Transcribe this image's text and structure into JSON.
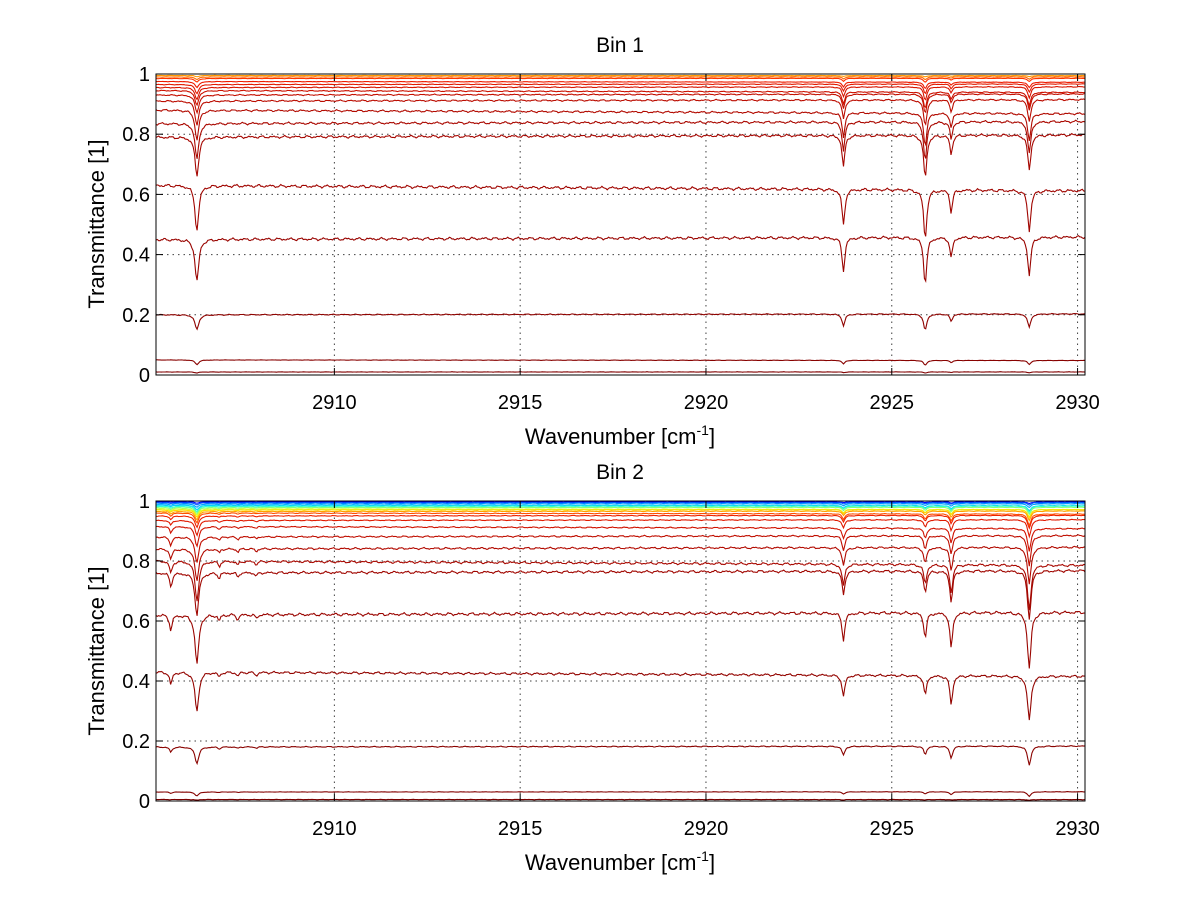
{
  "chart_data": [
    {
      "type": "line",
      "title": "Bin 1",
      "xlabel": "Wavenumber [cm",
      "xlabel_sup": "-1",
      "xlabel_end": "]",
      "ylabel": "Transmittance [1]",
      "xlim": [
        2905.2,
        2930.2
      ],
      "ylim": [
        0,
        1
      ],
      "xticks": [
        "2910",
        "2915",
        "2920",
        "2925",
        "2930"
      ],
      "yticks": [
        "0",
        "0.2",
        "0.4",
        "0.6",
        "0.8",
        "1"
      ],
      "grid": true,
      "lines": [
        {
          "x": 2906.3,
          "depth": 1.0,
          "width": 0.12
        },
        {
          "x": 2923.7,
          "depth": 0.8,
          "width": 0.09
        },
        {
          "x": 2925.9,
          "depth": 1.1,
          "width": 0.1
        },
        {
          "x": 2926.6,
          "depth": 0.5,
          "width": 0.08
        },
        {
          "x": 2928.7,
          "depth": 0.9,
          "width": 0.1
        }
      ],
      "series": [
        {
          "baseline": 0.995,
          "scale": 0.004,
          "color": "#ff9900"
        },
        {
          "baseline": 0.99,
          "scale": 0.008,
          "color": "#ff6a00"
        },
        {
          "baseline": 0.985,
          "scale": 0.012,
          "color": "#ff3300"
        },
        {
          "baseline": 0.975,
          "scale": 0.02,
          "color": "#ee1c00"
        },
        {
          "baseline": 0.965,
          "scale": 0.03,
          "color": "#e31a00"
        },
        {
          "baseline": 0.955,
          "scale": 0.04,
          "color": "#d81500"
        },
        {
          "baseline": 0.945,
          "scale": 0.05,
          "color": "#cc1100"
        },
        {
          "baseline": 0.93,
          "scale": 0.06,
          "color": "#c40f00"
        },
        {
          "baseline": 0.91,
          "scale": 0.08,
          "color": "#bb0c00"
        },
        {
          "baseline": 0.88,
          "scale": 0.1,
          "color": "#b20a00"
        },
        {
          "baseline": 0.835,
          "scale": 0.12,
          "color": "#aa0800"
        },
        {
          "baseline": 0.79,
          "scale": 0.13,
          "color": "#a50600"
        },
        {
          "baseline": 0.63,
          "scale": 0.15,
          "color": "#a00500"
        },
        {
          "baseline": 0.45,
          "scale": 0.14,
          "color": "#990400"
        },
        {
          "baseline": 0.2,
          "scale": 0.05,
          "color": "#8f0300"
        },
        {
          "baseline": 0.05,
          "scale": 0.015,
          "color": "#880200"
        },
        {
          "baseline": 0.01,
          "scale": 0.003,
          "color": "#800000"
        }
      ]
    },
    {
      "type": "line",
      "title": "Bin 2",
      "xlabel": "Wavenumber [cm",
      "xlabel_sup": "-1",
      "xlabel_end": "]",
      "ylabel": "Transmittance [1]",
      "xlim": [
        2905.2,
        2930.2
      ],
      "ylim": [
        0,
        1
      ],
      "xticks": [
        "2910",
        "2915",
        "2920",
        "2925",
        "2930"
      ],
      "yticks": [
        "0",
        "0.2",
        "0.4",
        "0.6",
        "0.8",
        "1"
      ],
      "grid": true,
      "lines": [
        {
          "x": 2905.6,
          "depth": 0.35,
          "width": 0.08
        },
        {
          "x": 2906.3,
          "depth": 1.1,
          "width": 0.12
        },
        {
          "x": 2906.9,
          "depth": 0.15,
          "width": 0.06
        },
        {
          "x": 2907.4,
          "depth": 0.12,
          "width": 0.06
        },
        {
          "x": 2907.9,
          "depth": 0.1,
          "width": 0.06
        },
        {
          "x": 2923.7,
          "depth": 0.6,
          "width": 0.09
        },
        {
          "x": 2925.9,
          "depth": 0.55,
          "width": 0.09
        },
        {
          "x": 2926.6,
          "depth": 0.8,
          "width": 0.09
        },
        {
          "x": 2928.7,
          "depth": 1.25,
          "width": 0.11
        }
      ],
      "series": [
        {
          "baseline": 0.997,
          "scale": 0.004,
          "color": "#0000ff"
        },
        {
          "baseline": 0.994,
          "scale": 0.006,
          "color": "#0060ff"
        },
        {
          "baseline": 0.99,
          "scale": 0.01,
          "color": "#00a0ff"
        },
        {
          "baseline": 0.986,
          "scale": 0.014,
          "color": "#00d0ff"
        },
        {
          "baseline": 0.982,
          "scale": 0.016,
          "color": "#30ffd0"
        },
        {
          "baseline": 0.978,
          "scale": 0.018,
          "color": "#80ff80"
        },
        {
          "baseline": 0.974,
          "scale": 0.02,
          "color": "#d0ff30"
        },
        {
          "baseline": 0.97,
          "scale": 0.022,
          "color": "#ffe000"
        },
        {
          "baseline": 0.965,
          "scale": 0.025,
          "color": "#ffa000"
        },
        {
          "baseline": 0.96,
          "scale": 0.03,
          "color": "#ff5000"
        },
        {
          "baseline": 0.95,
          "scale": 0.035,
          "color": "#ee2200"
        },
        {
          "baseline": 0.935,
          "scale": 0.045,
          "color": "#e01a00"
        },
        {
          "baseline": 0.915,
          "scale": 0.06,
          "color": "#d01200"
        },
        {
          "baseline": 0.88,
          "scale": 0.08,
          "color": "#c00e00"
        },
        {
          "baseline": 0.84,
          "scale": 0.1,
          "color": "#b20a00"
        },
        {
          "baseline": 0.8,
          "scale": 0.12,
          "color": "#a80800"
        },
        {
          "baseline": 0.76,
          "scale": 0.13,
          "color": "#a00600"
        },
        {
          "baseline": 0.62,
          "scale": 0.15,
          "color": "#9a0500"
        },
        {
          "baseline": 0.43,
          "scale": 0.12,
          "color": "#930400"
        },
        {
          "baseline": 0.18,
          "scale": 0.05,
          "color": "#8a0300"
        },
        {
          "baseline": 0.03,
          "scale": 0.012,
          "color": "#840200"
        },
        {
          "baseline": 0.005,
          "scale": 0.002,
          "color": "#7a0000"
        }
      ]
    }
  ]
}
